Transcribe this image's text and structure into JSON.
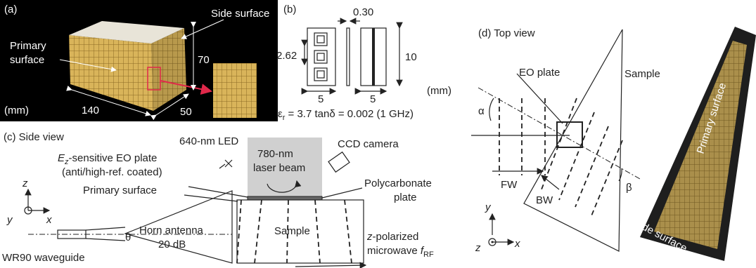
{
  "panel_a": {
    "label": "(a)",
    "side_surface": "Side surface",
    "primary_surface": [
      "Primary",
      "surface"
    ],
    "height": "70",
    "length": "140",
    "width": "50",
    "unit": "(mm)"
  },
  "panel_b": {
    "label": "(b)",
    "gap": "0.30",
    "pitch": "2.62",
    "height": "10",
    "width_left": "5",
    "width_right": "5",
    "unit": "(mm)",
    "material": [
      "ε",
      "r",
      " = 3.7  tanδ = 0.002 (1 GHz)"
    ]
  },
  "panel_c": {
    "label": "(c) Side view",
    "led": "640-nm LED",
    "laser": [
      "780-nm",
      "laser beam"
    ],
    "camera": "CCD camera",
    "eo_plate": [
      "E",
      "z",
      "-sensitive EO plate"
    ],
    "coating": "(anti/high-ref. coated)",
    "primary_surface": "Primary surface",
    "polycarbonate": [
      "Polycarbonate",
      "plate"
    ],
    "sample": "Sample",
    "horn": [
      "Horn antenna",
      "20 dB"
    ],
    "theta": "θ",
    "waveguide": "WR90 waveguide",
    "microwave": [
      "z",
      "-polarized",
      "microwave ",
      "f",
      "RF"
    ],
    "axes": [
      "z",
      "y",
      "x"
    ]
  },
  "panel_d": {
    "label": "(d) Top view",
    "eo_plate": "EO plate",
    "sample": "Sample",
    "alpha": "α",
    "beta": "β",
    "fw": "FW",
    "bw": "BW",
    "primary_surface": "Primary surface",
    "side_surface": "Side surface",
    "axes": [
      "y",
      "z",
      "x"
    ]
  }
}
